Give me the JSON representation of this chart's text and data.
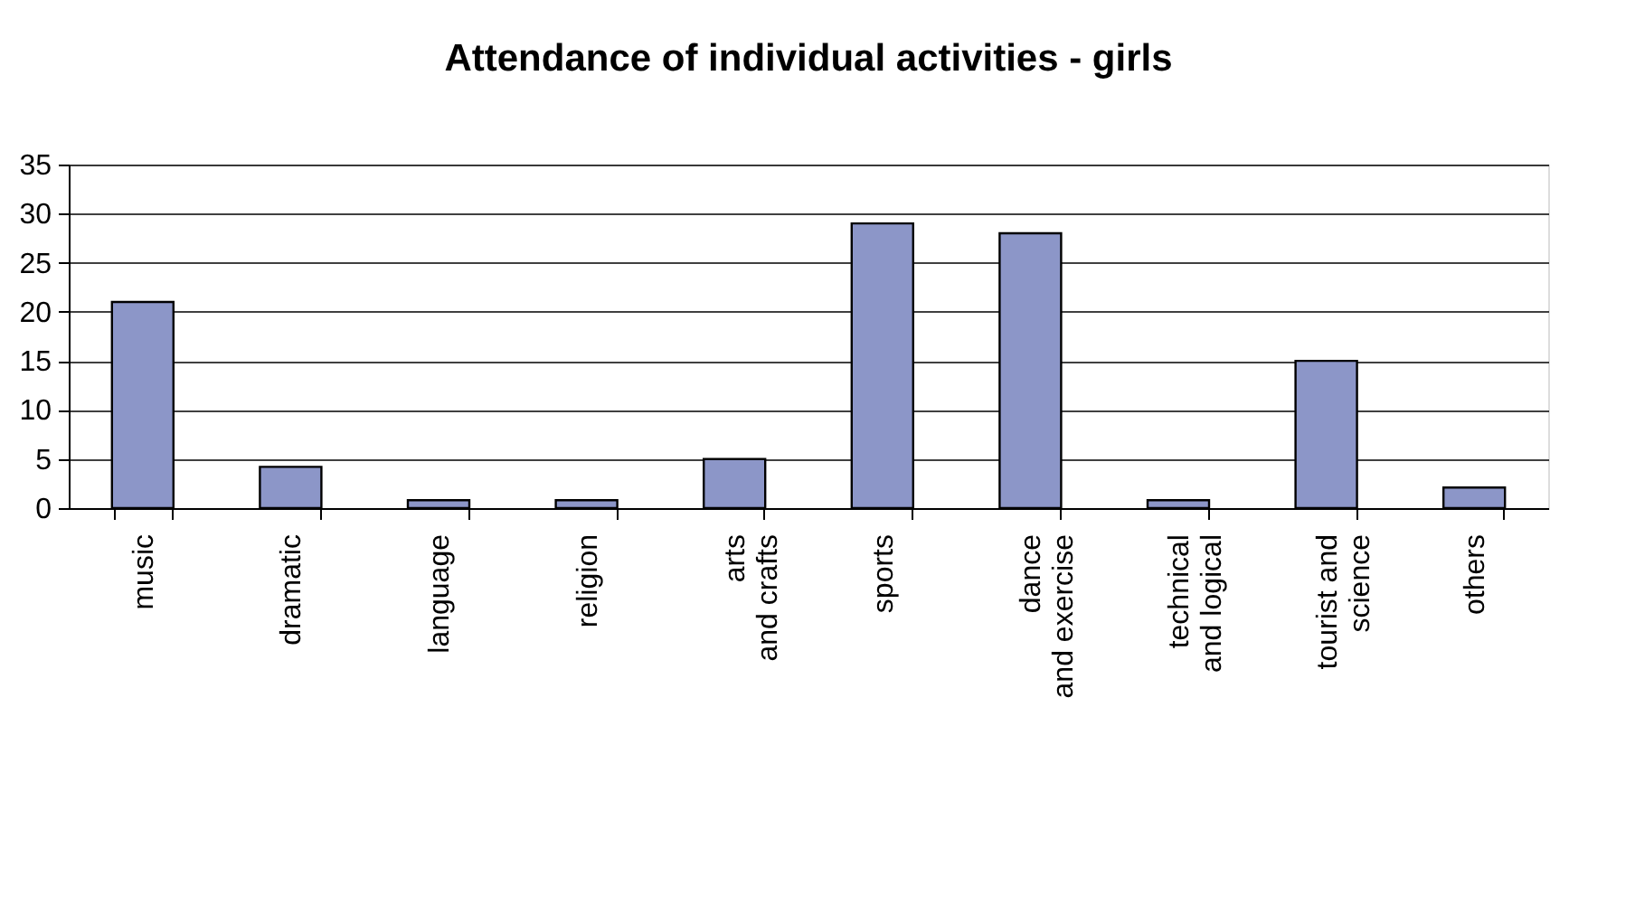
{
  "chart_data": {
    "type": "bar",
    "title": "Attendance of individual activities - girls",
    "categories": [
      "music",
      "dramatic",
      "language",
      "religion",
      "arts\nand crafts",
      "sports",
      "dance\nand exercise",
      "technical\nand logical",
      "tourist and\nscience",
      "others"
    ],
    "values": [
      21,
      4.2,
      0.8,
      0.8,
      5,
      29,
      28,
      0.8,
      15,
      2.1
    ],
    "color": "#8c96c8",
    "ylim": [
      0,
      35
    ],
    "yticks": [
      0,
      5,
      10,
      15,
      20,
      25,
      30,
      35
    ],
    "grid": "y"
  }
}
